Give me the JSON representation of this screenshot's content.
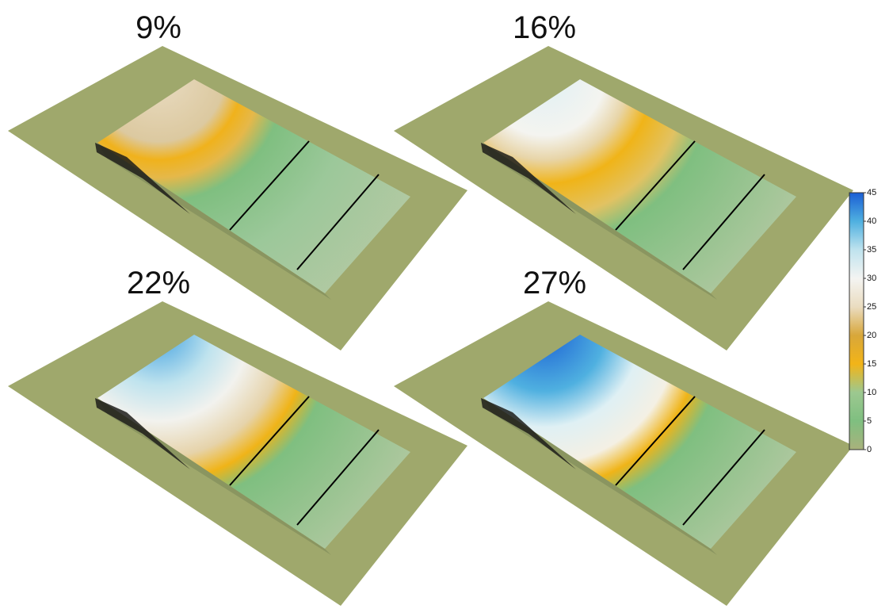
{
  "panels": [
    {
      "label": "9%"
    },
    {
      "label": "16%"
    },
    {
      "label": "22%"
    },
    {
      "label": "27%"
    }
  ],
  "colorbar": {
    "range": [
      0,
      45
    ],
    "ticks": [
      0,
      5,
      10,
      15,
      20,
      25,
      30,
      35,
      40,
      45
    ],
    "colors": [
      "#a9b27c",
      "#7fbf80",
      "#9cc890",
      "#f2b418",
      "#d8a73a",
      "#eadcc0",
      "#f4f4f2",
      "#bfe3ee",
      "#4fb0e0",
      "#1a5ed4"
    ]
  }
}
